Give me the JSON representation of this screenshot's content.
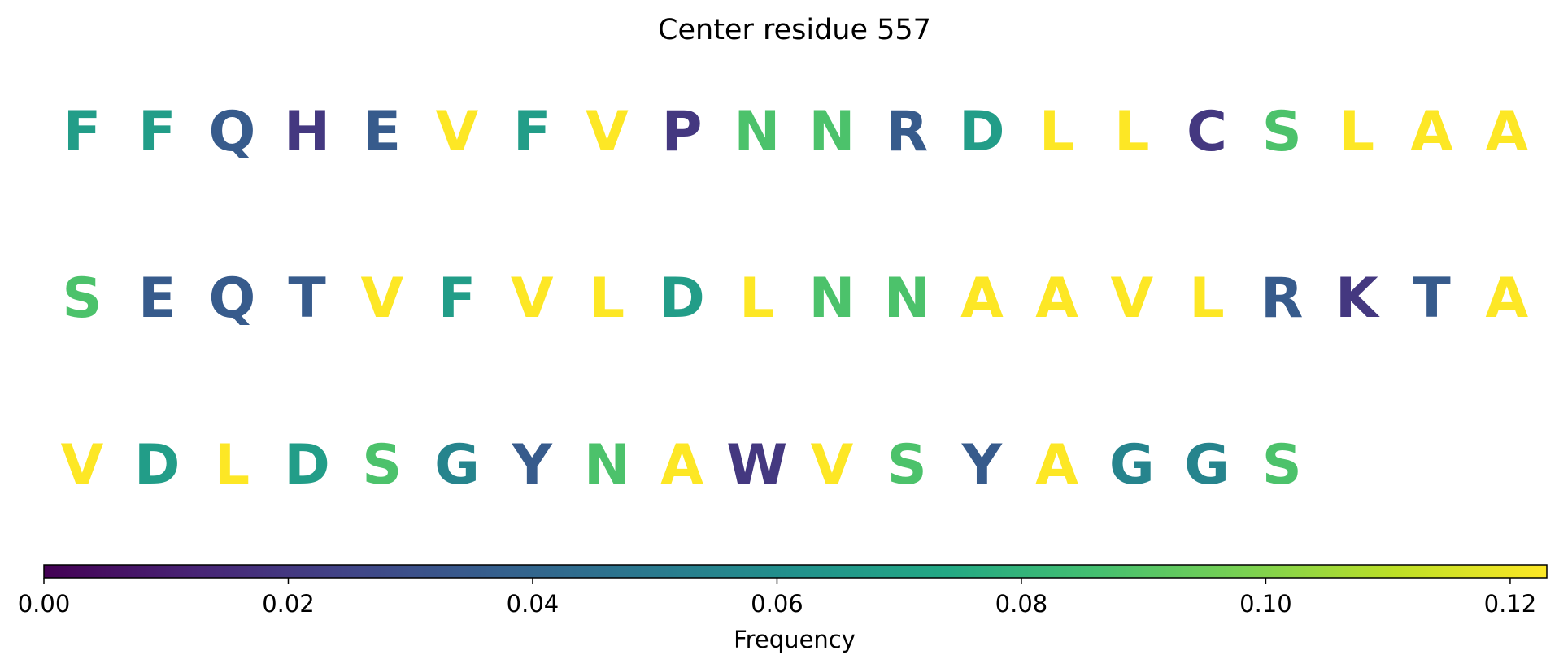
{
  "chart_data": {
    "type": "sequence-heatmap",
    "title": "Center residue 557",
    "rows": [
      {
        "residues": [
          "F",
          "F",
          "Q",
          "H",
          "E",
          "V",
          "F",
          "V",
          "P",
          "N",
          "N",
          "R",
          "D",
          "L",
          "L",
          "C",
          "S",
          "L",
          "A",
          "A"
        ],
        "frequencies": [
          0.068,
          0.068,
          0.035,
          0.02,
          0.035,
          0.123,
          0.068,
          0.123,
          0.02,
          0.088,
          0.088,
          0.035,
          0.068,
          0.123,
          0.123,
          0.02,
          0.088,
          0.123,
          0.123,
          0.123
        ]
      },
      {
        "residues": [
          "S",
          "E",
          "Q",
          "T",
          "V",
          "F",
          "V",
          "L",
          "D",
          "L",
          "N",
          "N",
          "A",
          "A",
          "V",
          "L",
          "R",
          "K",
          "T",
          "A"
        ],
        "frequencies": [
          0.088,
          0.035,
          0.035,
          0.035,
          0.123,
          0.068,
          0.123,
          0.123,
          0.068,
          0.123,
          0.088,
          0.088,
          0.123,
          0.123,
          0.123,
          0.123,
          0.035,
          0.02,
          0.035,
          0.123
        ]
      },
      {
        "residues": [
          "V",
          "D",
          "L",
          "D",
          "S",
          "G",
          "Y",
          "N",
          "A",
          "W",
          "V",
          "S",
          "Y",
          "A",
          "G",
          "G",
          "S"
        ],
        "frequencies": [
          0.123,
          0.068,
          0.123,
          0.068,
          0.088,
          0.055,
          0.035,
          0.088,
          0.123,
          0.02,
          0.123,
          0.088,
          0.035,
          0.123,
          0.055,
          0.055,
          0.088
        ]
      }
    ],
    "colorbar": {
      "colormap": "viridis",
      "range": [
        0,
        0.123
      ],
      "ticks": [
        0.0,
        0.02,
        0.04,
        0.06,
        0.08,
        0.1,
        0.12
      ],
      "tick_labels": [
        "0.00",
        "0.02",
        "0.04",
        "0.06",
        "0.08",
        "0.10",
        "0.12"
      ],
      "label": "Frequency"
    }
  }
}
